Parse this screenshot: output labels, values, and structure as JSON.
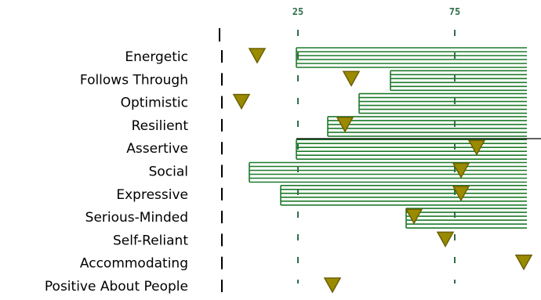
{
  "chart_data": {
    "type": "bar",
    "title": "",
    "xlabel": "",
    "ylabel": "",
    "xlim": [
      0,
      100
    ],
    "ticks": [
      {
        "value": 25,
        "label": "25"
      },
      {
        "value": 75,
        "label": "75"
      }
    ],
    "categories": [
      "Energetic",
      "Follows Through",
      "Optimistic",
      "Resilient",
      "Assertive",
      "Social",
      "Expressive",
      "Serious-Minded",
      "Self-Reliant",
      "Accommodating",
      "Positive About People"
    ],
    "ranges": [
      {
        "start": 24.5,
        "end": 98
      },
      {
        "start": 54.5,
        "end": 98
      },
      {
        "start": 44.5,
        "end": 98
      },
      {
        "start": 34.5,
        "end": 98
      },
      {
        "start": 24.5,
        "end": 98
      },
      {
        "start": 9.5,
        "end": 98
      },
      {
        "start": 19.5,
        "end": 98
      },
      {
        "start": 59.5,
        "end": 98
      },
      null,
      null,
      null
    ],
    "markers": [
      12,
      42,
      7,
      40,
      82,
      77,
      77,
      62,
      72,
      97,
      36
    ],
    "colors": {
      "band": "#1e7a2a",
      "marker": "#9a8a00",
      "marker_dark": "#6b5f00",
      "gridline": "#2f6f4a",
      "axis": "#000000"
    }
  }
}
